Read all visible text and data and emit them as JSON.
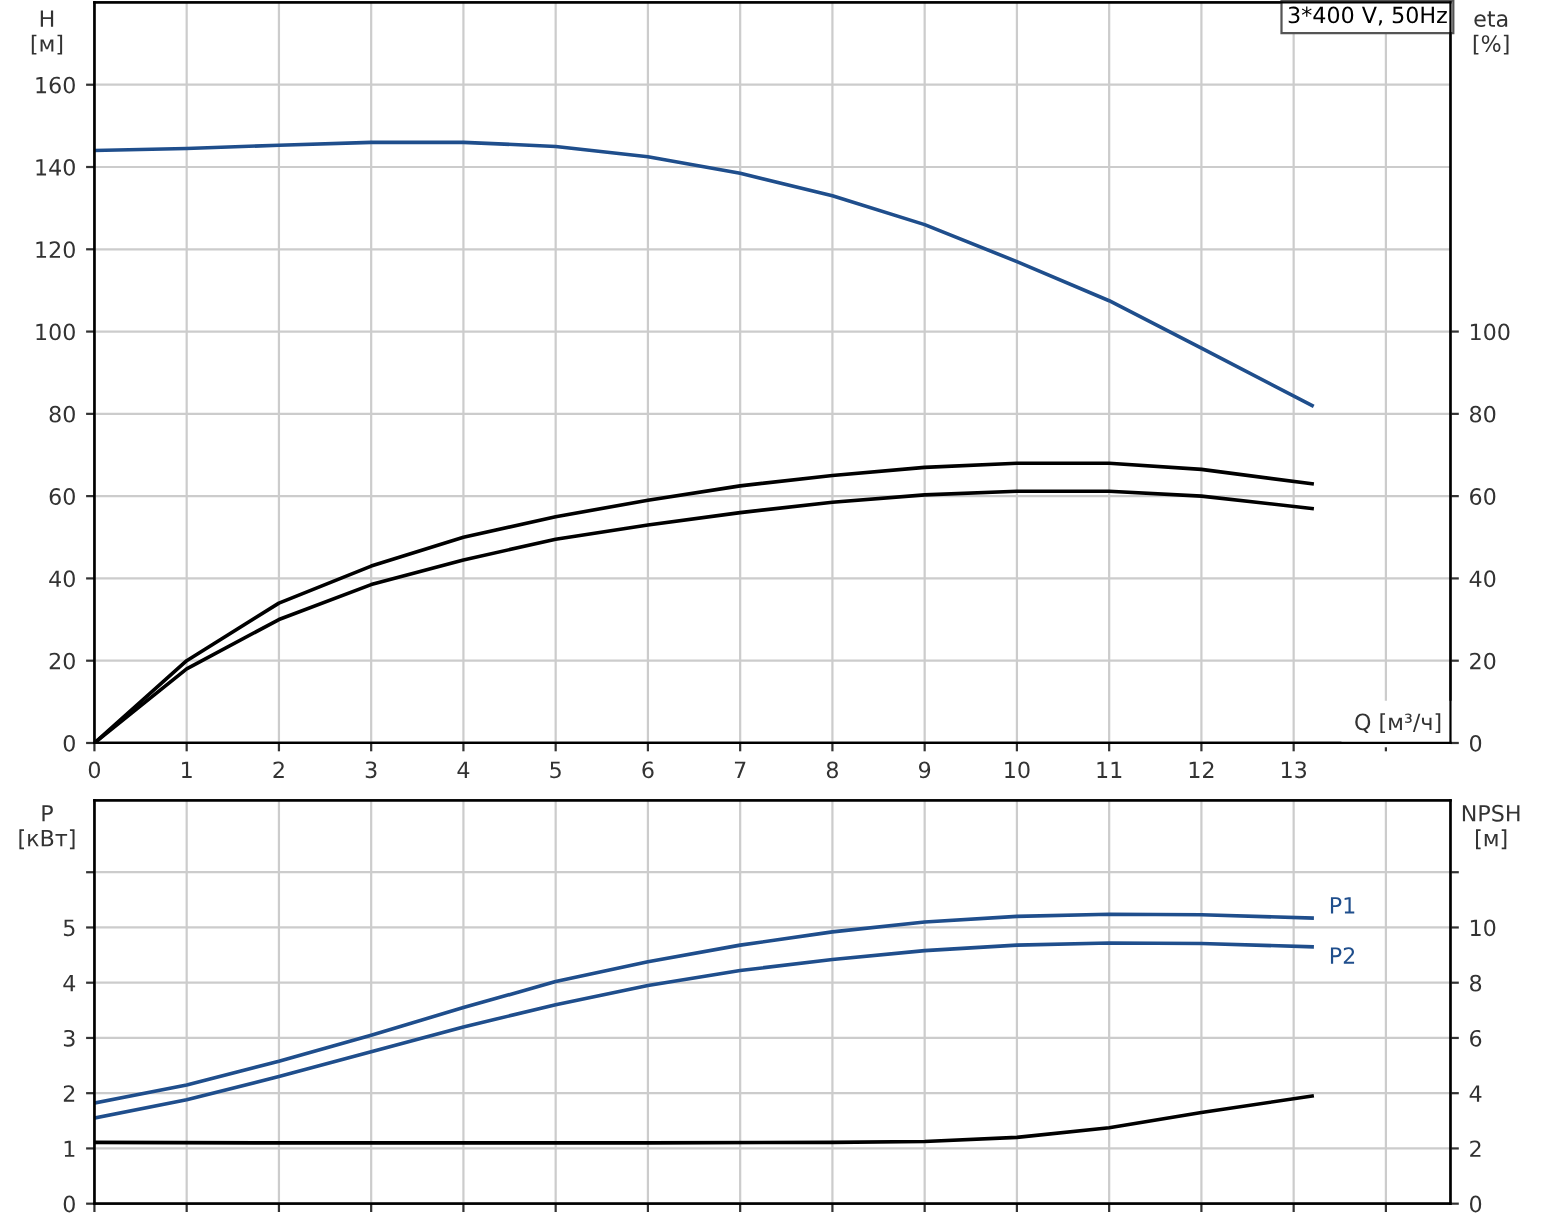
{
  "chart_data": [
    {
      "type": "line",
      "xlabel": "Q [м³/ч]",
      "ylabel": "H\n[м]",
      "y2label": "eta\n[%]",
      "annotations": [
        "3*400 V, 50Hz"
      ],
      "xlim": [
        0,
        14.7
      ],
      "xticks": [
        0,
        1,
        2,
        3,
        4,
        5,
        6,
        7,
        8,
        9,
        10,
        11,
        12,
        13,
        {
          "value": 14,
          "label": null
        }
      ],
      "ylim": [
        0,
        180
      ],
      "yticks": [
        0,
        20,
        40,
        60,
        80,
        100,
        120,
        140,
        160
      ],
      "y2lim": [
        0,
        180
      ],
      "y2ticks": [
        0,
        20,
        40,
        60,
        80,
        100
      ],
      "grid": true,
      "legend": false,
      "series": [
        {
          "color": "#1f4e8c",
          "x": [
            0,
            1,
            2,
            3,
            4,
            5,
            6,
            7,
            8,
            9,
            10,
            11,
            12,
            13.2
          ],
          "values": [
            144,
            144.5,
            145.3,
            146,
            146,
            145,
            142.5,
            138.5,
            133,
            126,
            117,
            107.5,
            96,
            82
          ]
        },
        {
          "color": "#000000",
          "axis": "y2",
          "x": [
            0,
            0.5,
            1,
            2,
            3,
            4,
            5,
            6,
            7,
            8,
            9,
            10,
            11,
            12,
            13.2
          ],
          "values": [
            0,
            10,
            20,
            34,
            43,
            50,
            55,
            59,
            62.5,
            65,
            67,
            68,
            68,
            66.5,
            63
          ]
        },
        {
          "color": "#000000",
          "axis": "y2",
          "x": [
            0,
            0.5,
            1,
            2,
            3,
            4,
            5,
            6,
            7,
            8,
            9,
            10,
            11,
            12,
            13.2
          ],
          "values": [
            0,
            9,
            18,
            30,
            38.5,
            44.5,
            49.5,
            53,
            56,
            58.5,
            60.3,
            61.2,
            61.2,
            60,
            57
          ]
        }
      ]
    },
    {
      "type": "line",
      "ylabel": "P\n[кВт]",
      "y2label": "NPSH\n[м]",
      "tick_labels": "y",
      "xlim": [
        0,
        14.7
      ],
      "xticks": [
        0,
        1,
        2,
        3,
        4,
        5,
        6,
        7,
        8,
        9,
        10,
        11,
        12,
        13,
        14
      ],
      "ylim": [
        0,
        7.3
      ],
      "yticks": [
        0,
        1,
        2,
        3,
        4,
        5,
        {
          "value": 6,
          "label": null
        }
      ],
      "y2lim": [
        0,
        14.6
      ],
      "y2ticks": [
        0,
        2,
        4,
        6,
        8,
        10,
        {
          "value": 12,
          "label": null
        }
      ],
      "grid": true,
      "legend": false,
      "series": [
        {
          "name": "P1",
          "color": "#1f4e8c",
          "x": [
            0,
            1,
            2,
            3,
            4,
            5,
            6,
            7,
            8,
            9,
            10,
            11,
            12,
            13.2
          ],
          "values": [
            1.82,
            2.15,
            2.58,
            3.05,
            3.55,
            4.02,
            4.38,
            4.68,
            4.92,
            5.1,
            5.2,
            5.24,
            5.23,
            5.17
          ]
        },
        {
          "name": "P2",
          "color": "#1f4e8c",
          "x": [
            0,
            1,
            2,
            3,
            4,
            5,
            6,
            7,
            8,
            9,
            10,
            11,
            12,
            13.2
          ],
          "values": [
            1.55,
            1.88,
            2.3,
            2.75,
            3.2,
            3.6,
            3.95,
            4.22,
            4.42,
            4.58,
            4.68,
            4.72,
            4.71,
            4.65
          ]
        },
        {
          "color": "#000000",
          "axis": "y2",
          "x": [
            0,
            2,
            4,
            6,
            8,
            9,
            10,
            11,
            12,
            13.2
          ],
          "values": [
            2.22,
            2.2,
            2.2,
            2.2,
            2.22,
            2.25,
            2.4,
            2.75,
            3.3,
            3.9
          ]
        }
      ]
    }
  ]
}
